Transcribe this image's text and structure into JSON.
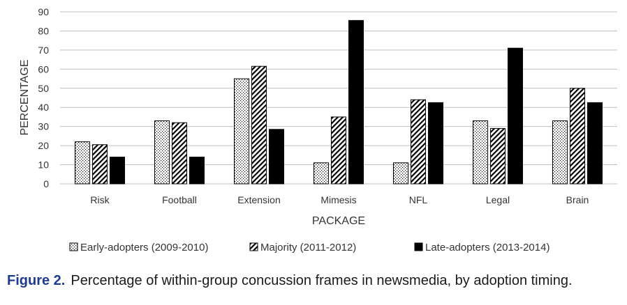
{
  "chart_data": {
    "type": "bar",
    "categories": [
      "Risk",
      "Football",
      "Extension",
      "Mimesis",
      "NFL",
      "Legal",
      "Brain"
    ],
    "series": [
      {
        "name": "Early-adopters (2009-2010)",
        "pattern": "dots",
        "values": [
          22,
          33,
          55,
          11,
          11,
          33,
          33
        ]
      },
      {
        "name": "Majority (2011-2012)",
        "pattern": "hatch",
        "values": [
          20.5,
          32,
          61.5,
          35,
          44,
          29,
          50
        ]
      },
      {
        "name": "Late-adopters (2013-2014)",
        "pattern": "solid",
        "values": [
          14,
          14,
          28.5,
          85.5,
          42.5,
          71,
          42.5
        ]
      }
    ],
    "xlabel": "PACKAGE",
    "ylabel": "PERCENTAGE",
    "ylim": [
      0,
      90
    ],
    "yticks": [
      0,
      10,
      20,
      30,
      40,
      50,
      60,
      70,
      80,
      90
    ],
    "grid": true,
    "legend_position": "bottom"
  },
  "caption": {
    "label": "Figure 2.",
    "text": "Percentage of within-group concussion frames in newsmedia, by adoption timing."
  },
  "colors": {
    "bar_fill": "#000000",
    "grid": "#bfbfbf",
    "caption_label": "#1f3b8f"
  }
}
